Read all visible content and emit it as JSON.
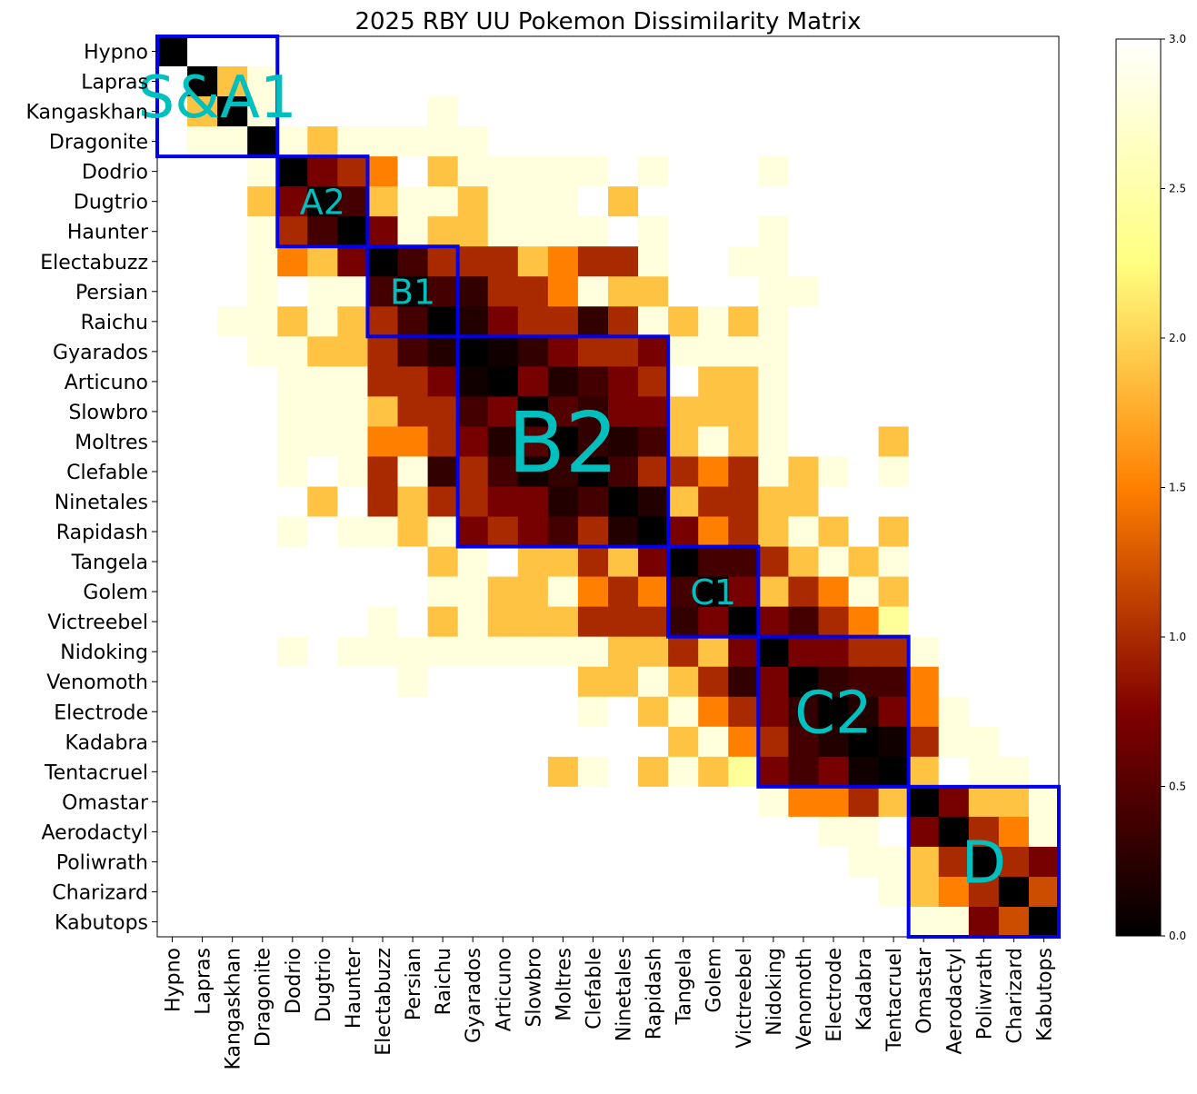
{
  "chart_data": {
    "type": "heatmap",
    "title": "2025 RBY UU Pokemon Dissimilarity Matrix",
    "labels": [
      "Hypno",
      "Lapras",
      "Kangaskhan",
      "Dragonite",
      "Dodrio",
      "Dugtrio",
      "Haunter",
      "Electabuzz",
      "Persian",
      "Raichu",
      "Gyarados",
      "Articuno",
      "Slowbro",
      "Moltres",
      "Clefable",
      "Ninetales",
      "Rapidash",
      "Tangela",
      "Golem",
      "Victreebel",
      "Nidoking",
      "Venomoth",
      "Electrode",
      "Kadabra",
      "Tentacruel",
      "Omastar",
      "Aerodactyl",
      "Poliwrath",
      "Charizard",
      "Kabutops"
    ],
    "matrix": [
      [
        0,
        3,
        3,
        3,
        3,
        3,
        3,
        3,
        3,
        3,
        3,
        3,
        3,
        3,
        3,
        3,
        3,
        3,
        3,
        3,
        3,
        3,
        3,
        3,
        3,
        3,
        3,
        3,
        3,
        3
      ],
      [
        3,
        0,
        1.9,
        2.8,
        3,
        3,
        3,
        3,
        3,
        3,
        3,
        3,
        3,
        3,
        3,
        3,
        3,
        3,
        3,
        3,
        3,
        3,
        3,
        3,
        3,
        3,
        3,
        3,
        3,
        3
      ],
      [
        3,
        1.9,
        0,
        2.8,
        3,
        3,
        3,
        3,
        3,
        2.8,
        3,
        3,
        3,
        3,
        3,
        3,
        3,
        3,
        3,
        3,
        3,
        3,
        3,
        3,
        3,
        3,
        3,
        3,
        3,
        3
      ],
      [
        3,
        2.8,
        2.8,
        0,
        2.8,
        1.9,
        2.8,
        2.8,
        2.8,
        2.8,
        2.8,
        3,
        3,
        3,
        3,
        3,
        3,
        3,
        3,
        3,
        3,
        3,
        3,
        3,
        3,
        3,
        3,
        3,
        3,
        3
      ],
      [
        3,
        3,
        3,
        2.8,
        0,
        0.7,
        1.0,
        1.5,
        3,
        1.9,
        2.8,
        2.8,
        2.8,
        2.8,
        2.8,
        3,
        2.8,
        3,
        3,
        3,
        2.8,
        3,
        3,
        3,
        3,
        3,
        3,
        3,
        3,
        3
      ],
      [
        3,
        3,
        3,
        1.9,
        0.7,
        0,
        0.4,
        1.9,
        2.8,
        2.8,
        1.9,
        2.8,
        2.8,
        2.8,
        3,
        1.9,
        3,
        3,
        3,
        3,
        3,
        3,
        3,
        3,
        3,
        3,
        3,
        3,
        3,
        3
      ],
      [
        3,
        3,
        3,
        2.8,
        1.0,
        0.4,
        0,
        0.7,
        2.8,
        1.9,
        1.9,
        2.8,
        2.8,
        2.8,
        2.8,
        3,
        2.8,
        3,
        3,
        3,
        2.8,
        3,
        3,
        3,
        3,
        3,
        3,
        3,
        3,
        3
      ],
      [
        3,
        3,
        3,
        2.8,
        1.5,
        1.9,
        0.7,
        0,
        0.4,
        1.0,
        1.0,
        1.0,
        1.9,
        1.5,
        1.0,
        1.0,
        2.8,
        3,
        3,
        2.8,
        2.8,
        3,
        3,
        3,
        3,
        3,
        3,
        3,
        3,
        3
      ],
      [
        3,
        3,
        3,
        2.8,
        3,
        2.8,
        2.8,
        0.4,
        0,
        0.4,
        0.3,
        1.0,
        1.0,
        1.5,
        2.8,
        1.9,
        1.9,
        3,
        3,
        3,
        2.8,
        2.8,
        3,
        3,
        3,
        3,
        3,
        3,
        3,
        3
      ],
      [
        3,
        3,
        2.8,
        2.8,
        1.9,
        2.8,
        1.9,
        1.0,
        0.4,
        0,
        0.2,
        0.7,
        1.0,
        1.0,
        0.3,
        1.0,
        2.8,
        1.9,
        2.8,
        1.9,
        2.8,
        3,
        3,
        3,
        3,
        3,
        3,
        3,
        3,
        3
      ],
      [
        3,
        3,
        3,
        2.8,
        2.8,
        1.9,
        1.9,
        1.0,
        0.4,
        0.2,
        0,
        0.1,
        0.3,
        0.7,
        1.0,
        1.0,
        0.7,
        2.8,
        2.8,
        2.8,
        2.8,
        3,
        3,
        3,
        3,
        3,
        3,
        3,
        3,
        3
      ],
      [
        3,
        3,
        3,
        3,
        2.8,
        2.8,
        2.8,
        1.0,
        1.0,
        0.7,
        0.1,
        0,
        0.7,
        0.2,
        0.4,
        0.7,
        1.0,
        3,
        1.9,
        1.9,
        2.8,
        3,
        3,
        3,
        3,
        3,
        3,
        3,
        3,
        3
      ],
      [
        3,
        3,
        3,
        3,
        2.8,
        2.8,
        2.8,
        1.9,
        1.0,
        1.0,
        0.4,
        0.7,
        0,
        0.5,
        0.3,
        0.7,
        0.7,
        1.9,
        1.9,
        1.9,
        2.8,
        3,
        3,
        3,
        3,
        3,
        3,
        3,
        3,
        3
      ],
      [
        3,
        3,
        3,
        3,
        2.8,
        2.8,
        2.8,
        1.5,
        1.5,
        1.0,
        0.7,
        0.2,
        0.5,
        0,
        0.3,
        0.2,
        0.4,
        1.9,
        2.8,
        1.9,
        2.8,
        3,
        3,
        3,
        1.9,
        3,
        3,
        3,
        3,
        3
      ],
      [
        3,
        3,
        3,
        3,
        2.8,
        3,
        2.8,
        1.0,
        2.8,
        0.3,
        1.0,
        0.4,
        0.1,
        0.3,
        0,
        0.4,
        1.0,
        1.0,
        1.5,
        1.0,
        2.8,
        1.9,
        2.8,
        3,
        2.8,
        3,
        3,
        3,
        3,
        3
      ],
      [
        3,
        3,
        3,
        3,
        3,
        1.9,
        3,
        1.0,
        1.9,
        1.0,
        1.0,
        0.7,
        0.7,
        0.2,
        0.4,
        0,
        0.2,
        1.9,
        1.0,
        1.0,
        1.9,
        1.9,
        3,
        3,
        3,
        3,
        3,
        3,
        3,
        3
      ],
      [
        3,
        3,
        3,
        3,
        2.8,
        3,
        2.8,
        2.8,
        1.9,
        2.8,
        0.7,
        1.0,
        0.7,
        0.4,
        1.0,
        0.2,
        0,
        0.7,
        1.5,
        1.0,
        1.9,
        2.8,
        1.9,
        3,
        1.9,
        3,
        3,
        3,
        3,
        3
      ],
      [
        3,
        3,
        3,
        3,
        3,
        3,
        3,
        3,
        3,
        1.9,
        2.8,
        3,
        1.9,
        1.9,
        1.0,
        1.9,
        0.7,
        0,
        0.4,
        0.4,
        1.0,
        1.9,
        2.8,
        1.9,
        2.8,
        3,
        3,
        3,
        3,
        3
      ],
      [
        3,
        3,
        3,
        3,
        3,
        3,
        3,
        3,
        3,
        2.8,
        2.8,
        1.9,
        1.9,
        2.8,
        1.5,
        1.0,
        1.5,
        0.4,
        0,
        0.7,
        1.9,
        1.0,
        1.5,
        2.8,
        1.9,
        3,
        3,
        3,
        3,
        3
      ],
      [
        3,
        3,
        3,
        3,
        3,
        3,
        3,
        2.8,
        3,
        1.9,
        2.8,
        1.9,
        1.9,
        1.9,
        1.0,
        1.0,
        1.0,
        0.3,
        0.7,
        0,
        0.7,
        0.4,
        1.0,
        1.5,
        2.4,
        3,
        3,
        3,
        3,
        3
      ],
      [
        3,
        3,
        3,
        3,
        2.8,
        3,
        2.8,
        2.8,
        2.8,
        2.8,
        2.8,
        2.8,
        2.8,
        2.8,
        2.8,
        1.9,
        1.9,
        1.0,
        1.9,
        0.7,
        0,
        0.7,
        0.7,
        1.0,
        1.0,
        2.8,
        3,
        3,
        3,
        3
      ],
      [
        3,
        3,
        3,
        3,
        3,
        3,
        3,
        3,
        2.8,
        3,
        3,
        3,
        3,
        3,
        1.9,
        1.9,
        2.8,
        1.9,
        1.0,
        0.3,
        0.7,
        0,
        0.3,
        0.4,
        0.4,
        1.5,
        3,
        3,
        3,
        3
      ],
      [
        3,
        3,
        3,
        3,
        3,
        3,
        3,
        3,
        3,
        3,
        3,
        3,
        3,
        3,
        2.8,
        3,
        1.9,
        2.8,
        1.5,
        1.0,
        0.7,
        0.3,
        0,
        0.2,
        0.7,
        1.5,
        2.8,
        3,
        3,
        3
      ],
      [
        3,
        3,
        3,
        3,
        3,
        3,
        3,
        3,
        3,
        3,
        3,
        3,
        3,
        3,
        3,
        3,
        3,
        1.9,
        2.8,
        1.5,
        1.0,
        0.4,
        0.2,
        0,
        0.1,
        1.0,
        2.8,
        2.8,
        3,
        3
      ],
      [
        3,
        3,
        3,
        3,
        3,
        3,
        3,
        3,
        3,
        3,
        3,
        3,
        3,
        1.9,
        2.8,
        3,
        1.9,
        2.8,
        1.9,
        2.4,
        0.7,
        0.4,
        0.7,
        0.1,
        0,
        1.9,
        3,
        2.8,
        2.8,
        3
      ],
      [
        3,
        3,
        3,
        3,
        3,
        3,
        3,
        3,
        3,
        3,
        3,
        3,
        3,
        3,
        3,
        3,
        3,
        3,
        3,
        3,
        2.8,
        1.5,
        1.5,
        1.0,
        1.9,
        0,
        0.7,
        1.9,
        1.9,
        2.8
      ],
      [
        3,
        3,
        3,
        3,
        3,
        3,
        3,
        3,
        3,
        3,
        3,
        3,
        3,
        3,
        3,
        3,
        3,
        3,
        3,
        3,
        3,
        3,
        2.8,
        2.8,
        3,
        0.7,
        0,
        1.0,
        1.5,
        2.8
      ],
      [
        3,
        3,
        3,
        3,
        3,
        3,
        3,
        3,
        3,
        3,
        3,
        3,
        3,
        3,
        3,
        3,
        3,
        3,
        3,
        3,
        3,
        3,
        3,
        2.8,
        2.8,
        1.9,
        1.0,
        0,
        1.0,
        0.7
      ],
      [
        3,
        3,
        3,
        3,
        3,
        3,
        3,
        3,
        3,
        3,
        3,
        3,
        3,
        3,
        3,
        3,
        3,
        3,
        3,
        3,
        3,
        3,
        3,
        3,
        2.8,
        1.9,
        1.5,
        1.0,
        0,
        1.2
      ],
      [
        3,
        3,
        3,
        3,
        3,
        3,
        3,
        3,
        3,
        3,
        3,
        3,
        3,
        3,
        3,
        3,
        3,
        3,
        3,
        3,
        3,
        3,
        3,
        3,
        3,
        2.8,
        2.8,
        0.7,
        1.2,
        0
      ]
    ],
    "clusters": [
      {
        "name": "S&A1",
        "start": 0,
        "end": 3,
        "size": "large"
      },
      {
        "name": "A2",
        "start": 4,
        "end": 6,
        "size": "small"
      },
      {
        "name": "B1",
        "start": 7,
        "end": 9,
        "size": "small"
      },
      {
        "name": "B2",
        "start": 10,
        "end": 16,
        "size": "xlarge"
      },
      {
        "name": "C1",
        "start": 17,
        "end": 19,
        "size": "small"
      },
      {
        "name": "C2",
        "start": 20,
        "end": 24,
        "size": "large"
      },
      {
        "name": "D",
        "start": 25,
        "end": 29,
        "size": "large"
      }
    ],
    "colorbar": {
      "min": 0.0,
      "max": 3.0,
      "ticks": [
        "0.0",
        "0.5",
        "1.0",
        "1.5",
        "2.0",
        "2.5",
        "3.0"
      ],
      "colormap": "afmhot"
    },
    "colors": {
      "cluster_box": "#0000ee",
      "cluster_label": "#00bfbf"
    }
  }
}
